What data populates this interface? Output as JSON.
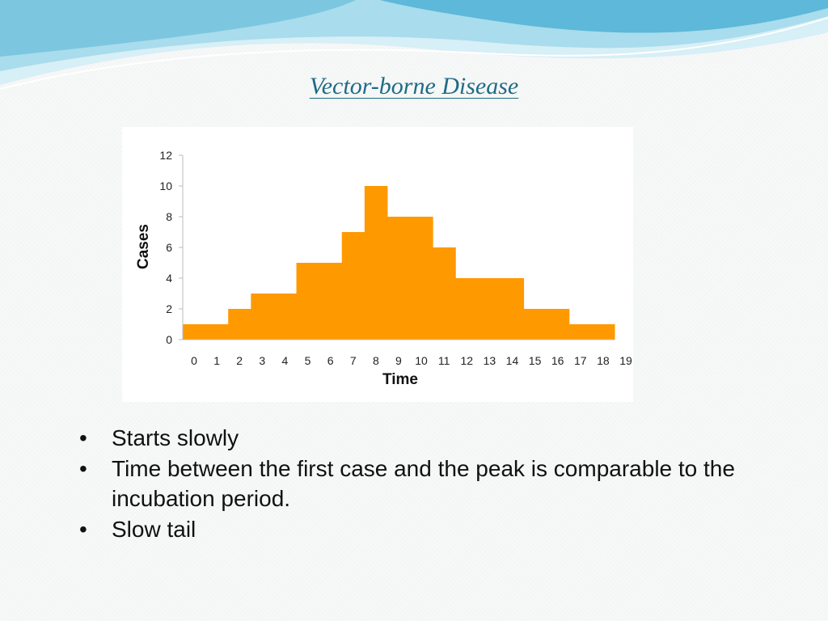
{
  "slide": {
    "title": "Vector-borne Disease",
    "bullets": [
      "Starts slowly",
      "Time between the first case and the peak is comparable to the incubation period.",
      "Slow tail"
    ],
    "bullet_symbol": "•"
  },
  "colors": {
    "bar": "#ff9900",
    "title": "#1f6b86",
    "wave_light": "#cdebf3",
    "wave_mid": "#8fd0e6",
    "wave_dark": "#56b4d6"
  },
  "chart_data": {
    "type": "bar",
    "xlabel": "Time",
    "ylabel": "Cases",
    "x_ticks": [
      "0",
      "1",
      "2",
      "3",
      "4",
      "5",
      "6",
      "7",
      "8",
      "9",
      "10",
      "11",
      "12",
      "13",
      "14",
      "15",
      "16",
      "17",
      "18",
      "19"
    ],
    "y_ticks": [
      0,
      2,
      4,
      6,
      8,
      10,
      12
    ],
    "ylim": [
      0,
      12
    ],
    "xlim": [
      0,
      19
    ],
    "grid": false,
    "legend": "none",
    "values": [
      1,
      1,
      2,
      3,
      3,
      5,
      5,
      7,
      10,
      8,
      8,
      6,
      4,
      4,
      4,
      2,
      2,
      1,
      1
    ]
  }
}
